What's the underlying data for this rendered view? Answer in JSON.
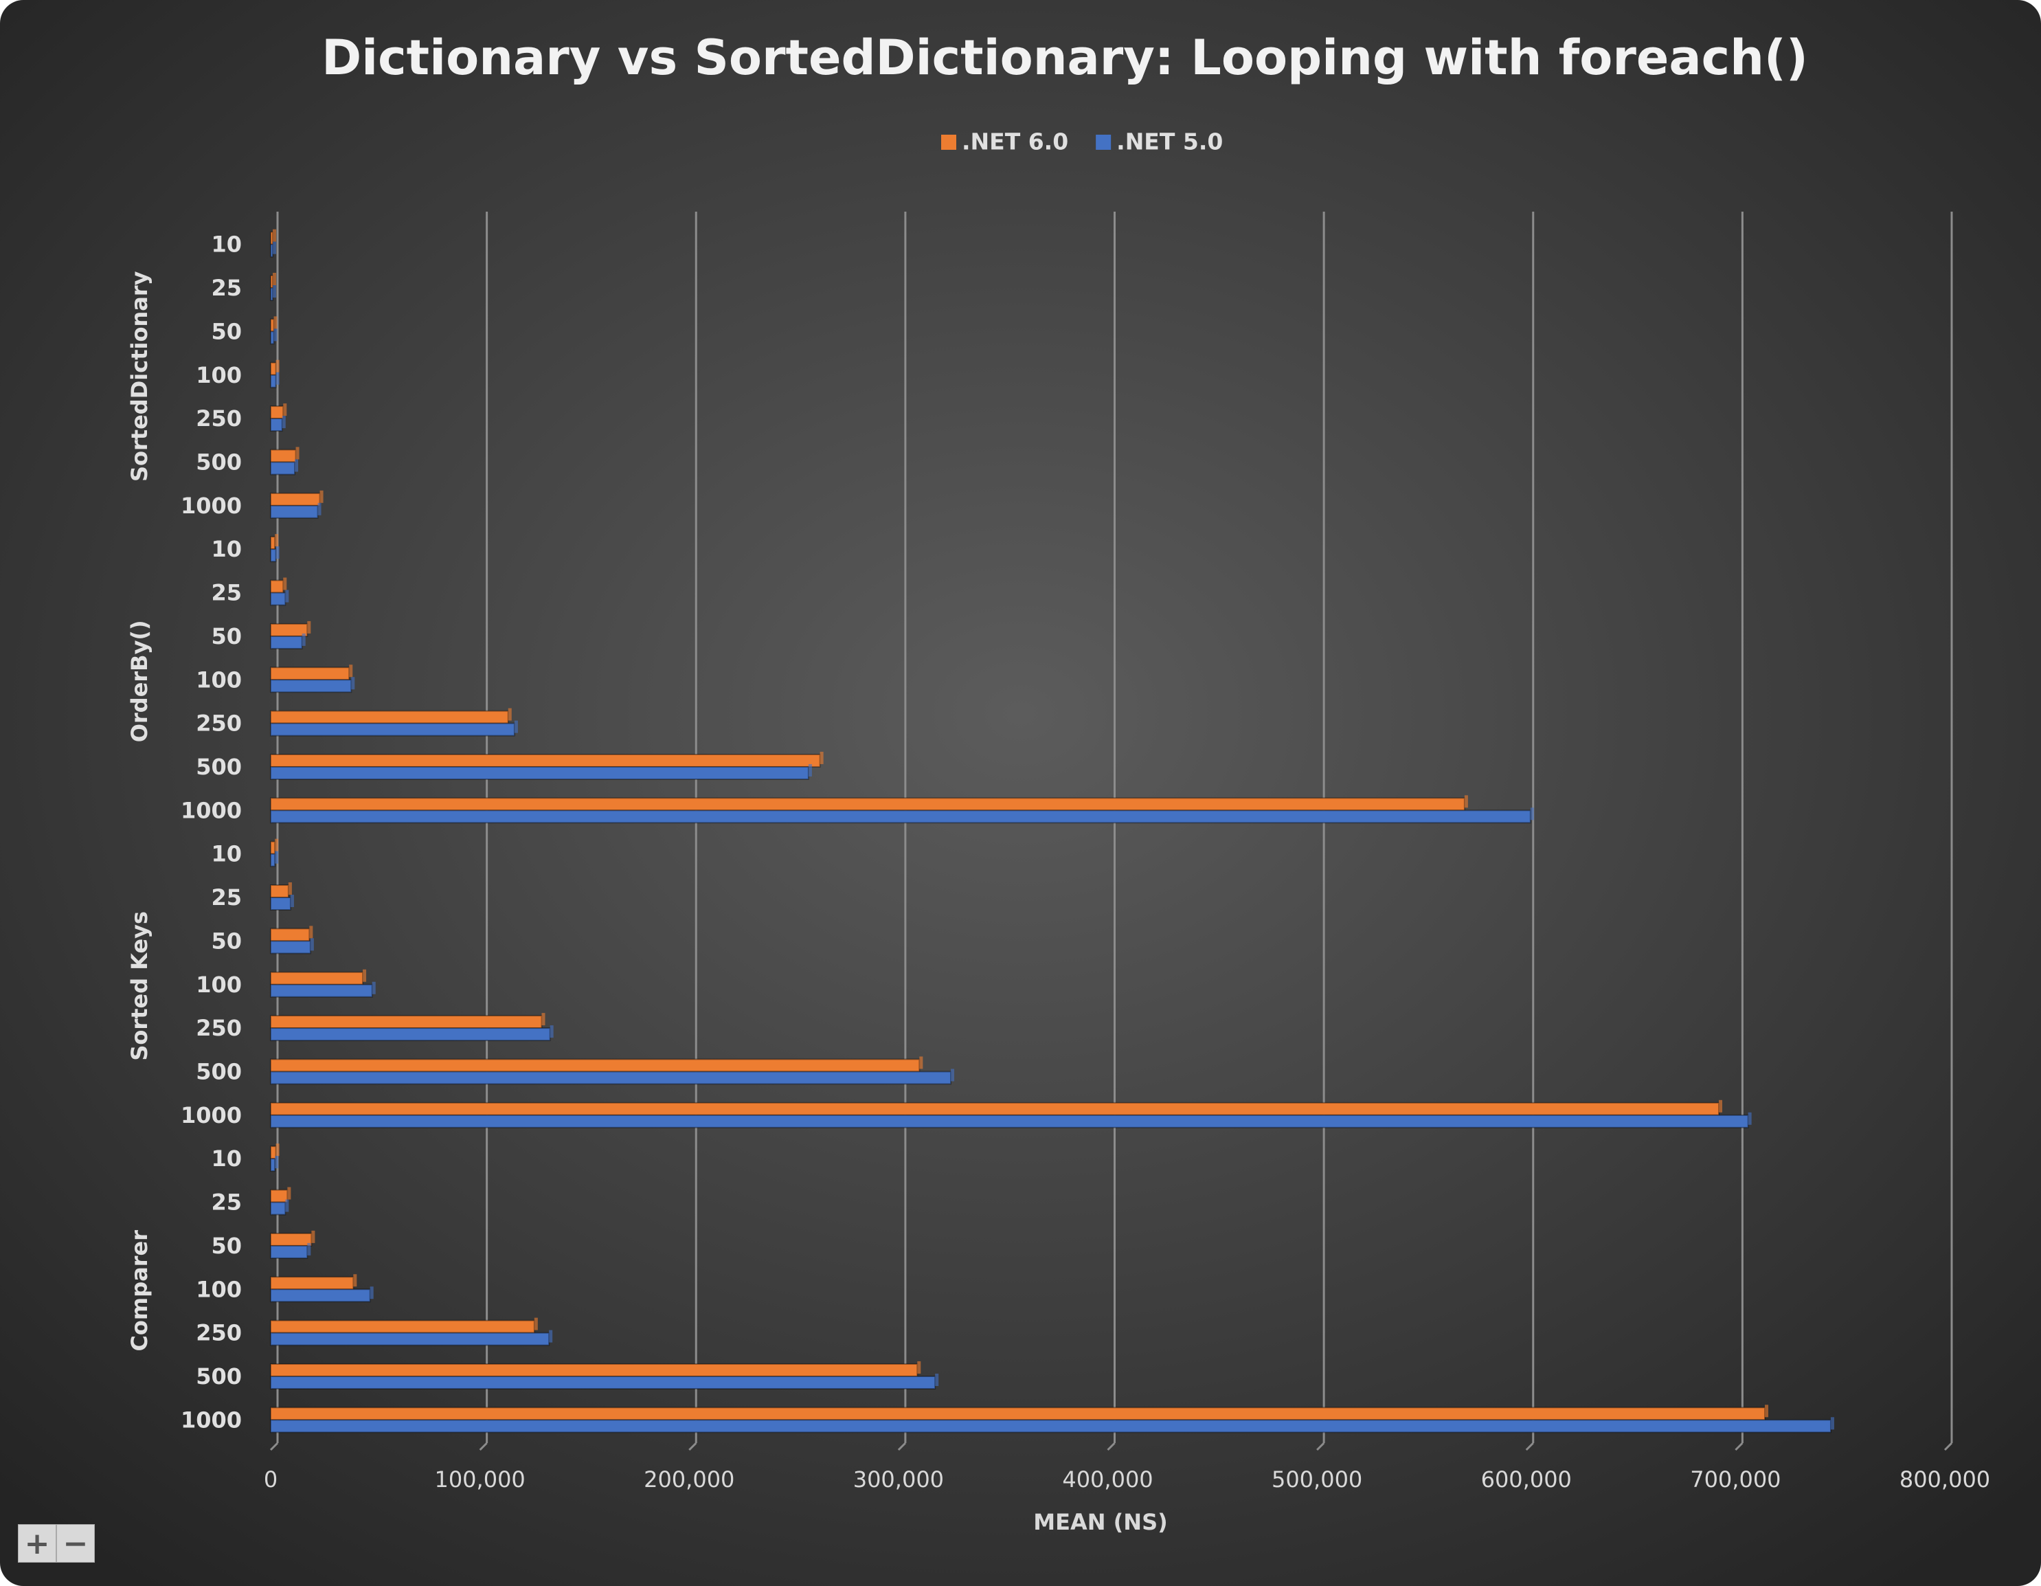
{
  "chart_data": {
    "type": "bar",
    "orientation": "horizontal",
    "title": "Dictionary vs SortedDictionary: Looping with foreach()",
    "x_label": "MEAN (NS)",
    "groups": [
      {
        "name": "SortedDictionary",
        "categories": [
          "10",
          "25",
          "50",
          "100",
          "250",
          "500",
          "1000"
        ]
      },
      {
        "name": "OrderBy()",
        "categories": [
          "10",
          "25",
          "50",
          "100",
          "250",
          "500",
          "1000"
        ]
      },
      {
        "name": "Sorted Keys",
        "categories": [
          "10",
          "25",
          "50",
          "100",
          "250",
          "500",
          "1000"
        ]
      },
      {
        "name": "Comparer",
        "categories": [
          "10",
          "25",
          "50",
          "100",
          "250",
          "500",
          "1000"
        ]
      }
    ],
    "series": [
      {
        "name": ".NET 6.0",
        "color": "#ed7d31",
        "values": [
          1000,
          1000,
          1500,
          2500,
          6000,
          12000,
          23500,
          2000,
          6000,
          17500,
          37500,
          113500,
          262500,
          570500,
          2000,
          8500,
          18500,
          44000,
          129500,
          310000,
          692000,
          2500,
          8000,
          19500,
          39500,
          126000,
          309000,
          714000
        ]
      },
      {
        "name": ".NET 5.0",
        "color": "#4472c4",
        "values": [
          1000,
          1000,
          1500,
          2500,
          5500,
          11500,
          22500,
          2500,
          7000,
          15000,
          38500,
          116500,
          257000,
          602000,
          2000,
          9500,
          19000,
          48500,
          133500,
          325000,
          706000,
          2000,
          7000,
          17500,
          47500,
          133000,
          317500,
          745500
        ]
      }
    ],
    "xlim": [
      0,
      800000
    ],
    "xticks": [
      {
        "value": 0,
        "label": "0"
      },
      {
        "value": 100000,
        "label": "100,000"
      },
      {
        "value": 200000,
        "label": "200,000"
      },
      {
        "value": 300000,
        "label": "300,000"
      },
      {
        "value": 400000,
        "label": "400,000"
      },
      {
        "value": 500000,
        "label": "500,000"
      },
      {
        "value": 600000,
        "label": "600,000"
      },
      {
        "value": 700000,
        "label": "700,000"
      },
      {
        "value": 800000,
        "label": "800,000"
      }
    ],
    "grid": true,
    "legend": "top"
  },
  "zoom_controls": [
    "+",
    "−"
  ]
}
